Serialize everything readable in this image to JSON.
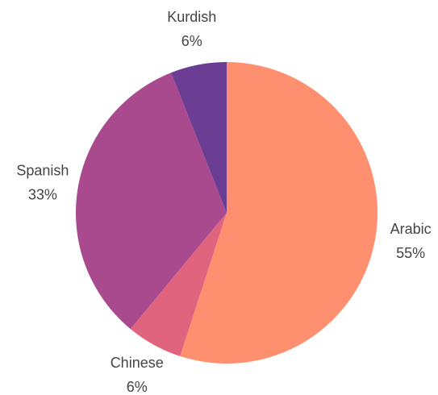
{
  "chart_data": {
    "type": "pie",
    "categories": [
      "Arabic",
      "Chinese",
      "Spanish",
      "Kurdish"
    ],
    "values": [
      55,
      6,
      33,
      6
    ],
    "value_labels": [
      "55%",
      "6%",
      "33%",
      "6%"
    ],
    "colors": [
      "#fe9070",
      "#e0647e",
      "#a94a8f",
      "#6a3d92"
    ]
  }
}
